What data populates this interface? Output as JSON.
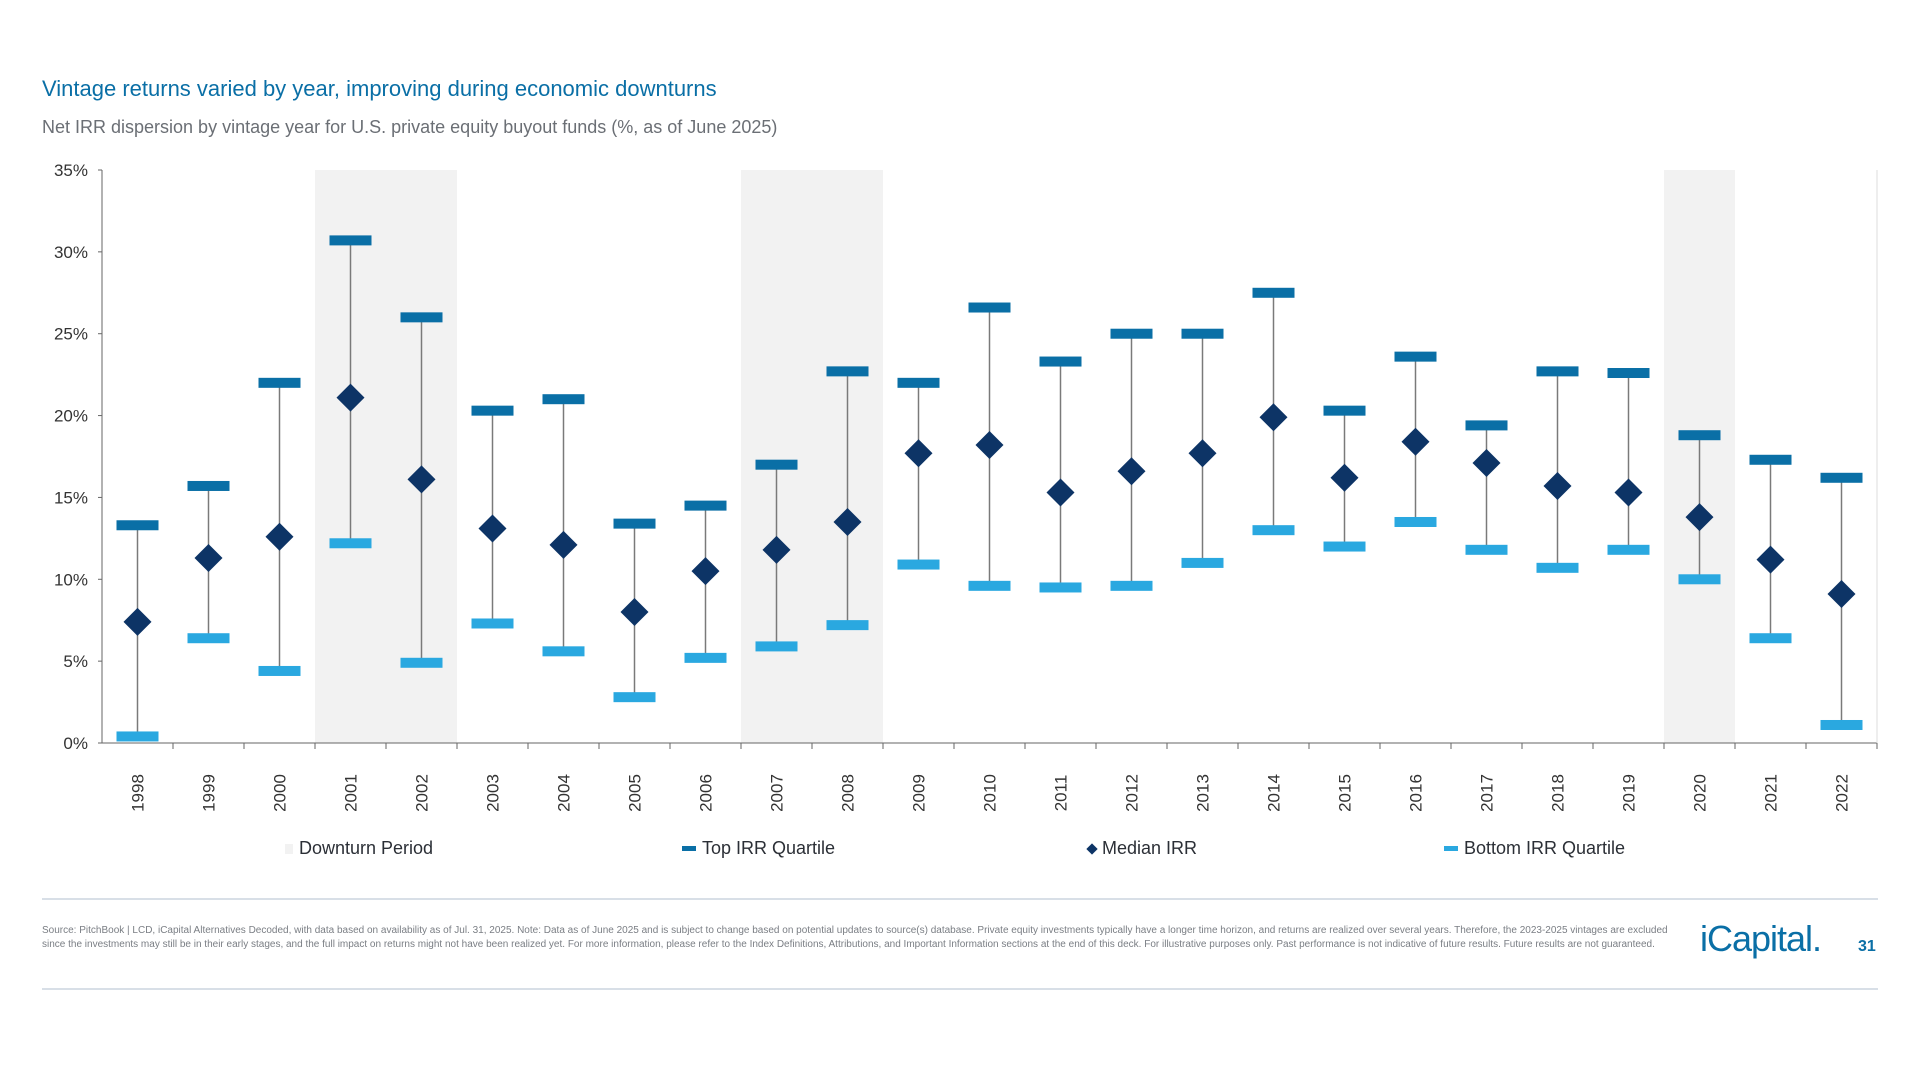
{
  "header": {
    "title": "Vintage returns varied by year, improving during economic downturns",
    "subtitle": "Net IRR dispersion by vintage year for U.S. private equity buyout funds (%, as of June 2025)"
  },
  "chart_data": {
    "type": "scatter",
    "subtype": "range-with-median",
    "categories": [
      "1998",
      "1999",
      "2000",
      "2001",
      "2002",
      "2003",
      "2004",
      "2005",
      "2006",
      "2007",
      "2008",
      "2009",
      "2010",
      "2011",
      "2012",
      "2013",
      "2014",
      "2015",
      "2016",
      "2017",
      "2018",
      "2019",
      "2020",
      "2021",
      "2022"
    ],
    "series": [
      {
        "name": "Top IRR Quartile",
        "color": "#0a6fa6",
        "values": [
          13.3,
          15.7,
          22.0,
          30.7,
          26.0,
          20.3,
          21.0,
          13.4,
          14.5,
          17.0,
          22.7,
          22.0,
          26.6,
          23.3,
          25.0,
          25.0,
          27.5,
          20.3,
          23.6,
          19.4,
          22.7,
          22.6,
          18.8,
          17.3,
          16.2
        ]
      },
      {
        "name": "Median IRR",
        "color": "#0d3466",
        "values": [
          7.4,
          11.3,
          12.6,
          21.1,
          16.1,
          13.1,
          12.1,
          8.0,
          10.5,
          11.8,
          13.5,
          17.7,
          18.2,
          15.3,
          16.6,
          17.7,
          19.9,
          16.2,
          18.4,
          17.1,
          15.7,
          15.3,
          13.8,
          11.2,
          9.1
        ]
      },
      {
        "name": "Bottom IRR Quartile",
        "color": "#2aa8e0",
        "values": [
          0.4,
          6.4,
          4.4,
          12.2,
          4.9,
          7.3,
          5.6,
          2.8,
          5.2,
          5.9,
          7.2,
          10.9,
          9.6,
          9.5,
          9.6,
          11.0,
          13.0,
          12.0,
          13.5,
          11.8,
          10.7,
          11.8,
          10.0,
          6.4,
          1.1
        ]
      }
    ],
    "downturn_periods": [
      "2001",
      "2002",
      "2007",
      "2008",
      "2020"
    ],
    "downturn_color": "#f2f2f2",
    "ylim": [
      0,
      35
    ],
    "yticks": [
      0,
      5,
      10,
      15,
      20,
      25,
      30,
      35
    ],
    "ytick_labels": [
      "0%",
      "5%",
      "10%",
      "15%",
      "20%",
      "25%",
      "30%",
      "35%"
    ],
    "grid": false,
    "legend_position": "bottom",
    "legend": [
      "Downturn Period",
      "Top IRR Quartile",
      "Median IRR",
      "Bottom IRR Quartile"
    ]
  },
  "footer": {
    "source": "Source: PitchBook | LCD, iCapital Alternatives Decoded, with data based on availability as of Jul. 31, 2025. Note: Data as of June 2025 and is subject to change based on potential updates to source(s) database. Private equity investments typically have a longer time horizon, and returns are realized over several years. Therefore, the 2023-2025 vintages are excluded since the investments may still be in their early stages, and the full impact on returns might not have been realized yet. For more information, please refer to the Index Definitions, Attributions, and Important Information sections at the end of this deck. For illustrative purposes only. Past performance is not indicative of future results. Future results are not guaranteed.",
    "logo": "iCapital.",
    "page_number": "31"
  }
}
